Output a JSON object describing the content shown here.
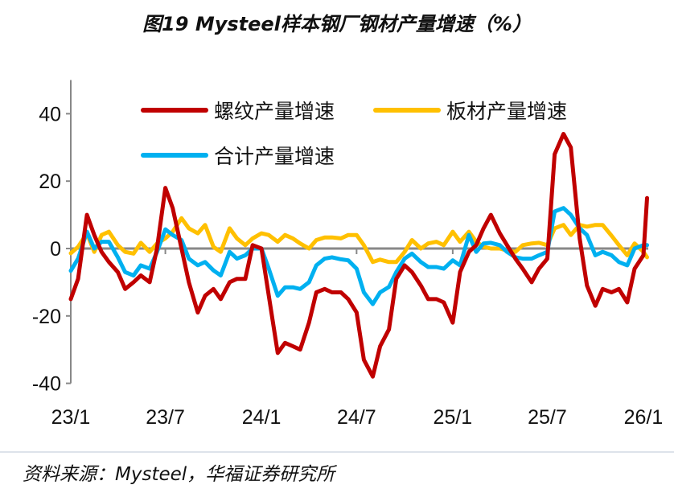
{
  "title": "图19 Mysteel样本钢厂钢材产量增速（%）",
  "source": "资料来源：Mysteel，华福证券研究所",
  "chart_data": {
    "type": "line",
    "title": "图19 Mysteel样本钢厂钢材产量增速（%）",
    "xlabel": "",
    "ylabel": "",
    "ylim": [
      -40,
      50
    ],
    "yticks": [
      40,
      20,
      0,
      -20,
      -40
    ],
    "ytick_labels": [
      "40",
      "20",
      "0",
      "-20",
      "-40"
    ],
    "xticks": [
      "2023-01-01",
      "2023-07-01",
      "2024-01-01",
      "2024-07-01",
      "2025-01-01",
      "2025-07-01",
      "2026-01-01"
    ],
    "xtick_labels": [
      "23/1",
      "23/7",
      "24/1",
      "24/7",
      "25/1",
      "25/7",
      "26/1"
    ],
    "grid": false,
    "legend_placement": "top",
    "x": [
      "2023-01-01",
      "2023-01-15",
      "2023-02-01",
      "2023-02-15",
      "2023-03-01",
      "2023-03-15",
      "2023-04-01",
      "2023-04-15",
      "2023-05-01",
      "2023-05-15",
      "2023-06-01",
      "2023-06-15",
      "2023-07-01",
      "2023-07-15",
      "2023-08-01",
      "2023-08-15",
      "2023-09-01",
      "2023-09-15",
      "2023-10-01",
      "2023-10-15",
      "2023-11-01",
      "2023-11-15",
      "2023-12-01",
      "2023-12-15",
      "2024-01-01",
      "2024-01-15",
      "2024-02-01",
      "2024-02-15",
      "2024-03-01",
      "2024-03-15",
      "2024-04-01",
      "2024-04-15",
      "2024-05-01",
      "2024-05-15",
      "2024-06-01",
      "2024-06-15",
      "2024-07-01",
      "2024-07-15",
      "2024-08-01",
      "2024-08-15",
      "2024-09-01",
      "2024-09-15",
      "2024-10-01",
      "2024-10-15",
      "2024-11-01",
      "2024-11-15",
      "2024-12-01",
      "2024-12-15",
      "2025-01-01",
      "2025-01-15",
      "2025-02-01",
      "2025-02-15",
      "2025-03-01",
      "2025-03-15",
      "2025-04-01",
      "2025-04-15",
      "2025-05-01",
      "2025-05-15",
      "2025-06-01",
      "2025-06-15",
      "2025-07-01",
      "2025-07-15",
      "2025-08-01",
      "2025-08-15",
      "2025-09-01",
      "2025-09-15",
      "2025-10-01",
      "2025-10-15",
      "2025-11-01",
      "2025-11-15",
      "2025-12-01",
      "2025-12-15",
      "2026-01-01",
      "2026-01-08"
    ],
    "series": [
      {
        "name": "螺纹产量增速",
        "color": "#C00000",
        "values": [
          -15,
          -9,
          10,
          4,
          -1,
          -4,
          -7,
          -12,
          -10,
          -8,
          -10,
          0,
          18,
          12,
          0,
          -10,
          -19,
          -14,
          -12,
          -15,
          -10,
          -9,
          -9,
          1,
          0,
          -14,
          -31,
          -28,
          -29,
          -30,
          -22,
          -13,
          -12,
          -13,
          -13,
          -15,
          -19,
          -33,
          -38,
          -29,
          -24,
          -9,
          -5,
          -7,
          -11,
          -15,
          -15,
          -16,
          -22,
          -7,
          -1,
          1,
          6,
          10,
          4.5,
          1,
          -3,
          -6,
          -10,
          -6,
          -3,
          28,
          34,
          30,
          3,
          -11,
          -17,
          -12,
          -13,
          -12,
          -16,
          -6,
          -2,
          15
        ]
      },
      {
        "name": "板材产量增速",
        "color": "#FFC000",
        "values": [
          -1.4,
          0.5,
          4.5,
          -1,
          4,
          5,
          1,
          -1,
          -1.5,
          1.7,
          -1,
          1.5,
          3,
          5,
          9,
          6,
          4.5,
          7,
          0.5,
          -1,
          6,
          3,
          1,
          3,
          4.5,
          4,
          2,
          4,
          3,
          1.5,
          0,
          2.5,
          3.3,
          3.3,
          3,
          4,
          4,
          1,
          -4,
          -3.3,
          -4,
          -4,
          -1,
          2.5,
          0,
          1.5,
          2,
          1,
          5,
          2,
          5,
          2,
          0.5,
          0,
          0,
          -0.6,
          -1,
          1,
          1.5,
          1.7,
          1,
          6,
          7,
          4,
          7,
          6.5,
          7,
          7,
          3.8,
          1,
          -2,
          1.5,
          -1,
          -2.6
        ]
      },
      {
        "name": "合计产量增速",
        "color": "#00B0F0",
        "values": [
          -6.6,
          -3,
          5,
          0,
          2,
          2,
          -2.6,
          -7,
          -8,
          -5,
          -6,
          -1,
          5.7,
          4,
          2.5,
          -3,
          -5,
          -4,
          -6.5,
          -8,
          -1,
          -3,
          -2,
          0,
          0,
          -6,
          -14,
          -11.5,
          -11.5,
          -12,
          -10,
          -5,
          -3,
          -2.6,
          -3.2,
          -3.5,
          -6,
          -13,
          -16.5,
          -13,
          -11.4,
          -7,
          -3,
          -1.5,
          -4,
          -5.5,
          -5.5,
          -6,
          -3.5,
          -5,
          4,
          -1,
          1.5,
          1.7,
          1,
          -1,
          -2.6,
          -3,
          -3,
          -2,
          -1,
          11,
          12,
          10,
          6,
          4,
          -2,
          -1,
          -2,
          -4,
          -5,
          0,
          1,
          1
        ]
      }
    ]
  }
}
